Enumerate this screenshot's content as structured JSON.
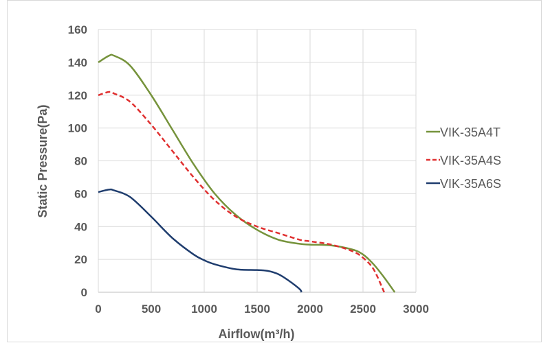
{
  "chart_data": {
    "type": "line",
    "title": "",
    "xlabel": "Airflow(m³/h)",
    "ylabel": "Static Pressure(Pa)",
    "xlim": [
      0,
      3000
    ],
    "ylim": [
      0,
      160
    ],
    "xticks": [
      0,
      500,
      1000,
      1500,
      2000,
      2500,
      3000
    ],
    "yticks": [
      0,
      20,
      40,
      60,
      80,
      100,
      120,
      140,
      160
    ],
    "grid": true,
    "legend": "right",
    "series": [
      {
        "name": "VIK-35A4T",
        "color": "#76933c",
        "dash": "solid",
        "x": [
          0,
          100,
          150,
          300,
          500,
          700,
          900,
          1100,
          1300,
          1500,
          1700,
          1900,
          2000,
          2200,
          2400,
          2500,
          2600,
          2700,
          2800
        ],
        "y": [
          140,
          144,
          144,
          138,
          120,
          99,
          78,
          60,
          47,
          38,
          32,
          29.5,
          29,
          28.5,
          26,
          23,
          17,
          9,
          0
        ]
      },
      {
        "name": "VIK-35A4S",
        "color": "#e03030",
        "dash": "dashed",
        "x": [
          0,
          100,
          150,
          300,
          500,
          700,
          900,
          1100,
          1300,
          1500,
          1700,
          1900,
          2000,
          2200,
          2400,
          2500,
          2600,
          2700
        ],
        "y": [
          120,
          122,
          121,
          116,
          102,
          86,
          70,
          56,
          46,
          40,
          36,
          32,
          31,
          29,
          25,
          21,
          14,
          0
        ]
      },
      {
        "name": "VIK-35A6S",
        "color": "#1f3d6e",
        "dash": "solid",
        "x": [
          0,
          100,
          150,
          300,
          500,
          700,
          900,
          1000,
          1100,
          1300,
          1500,
          1600,
          1700,
          1800,
          1900,
          1920
        ],
        "y": [
          61,
          62.5,
          62,
          58,
          46,
          33,
          23,
          19.5,
          17,
          14,
          13.5,
          13,
          11,
          7,
          2,
          0
        ]
      }
    ]
  }
}
